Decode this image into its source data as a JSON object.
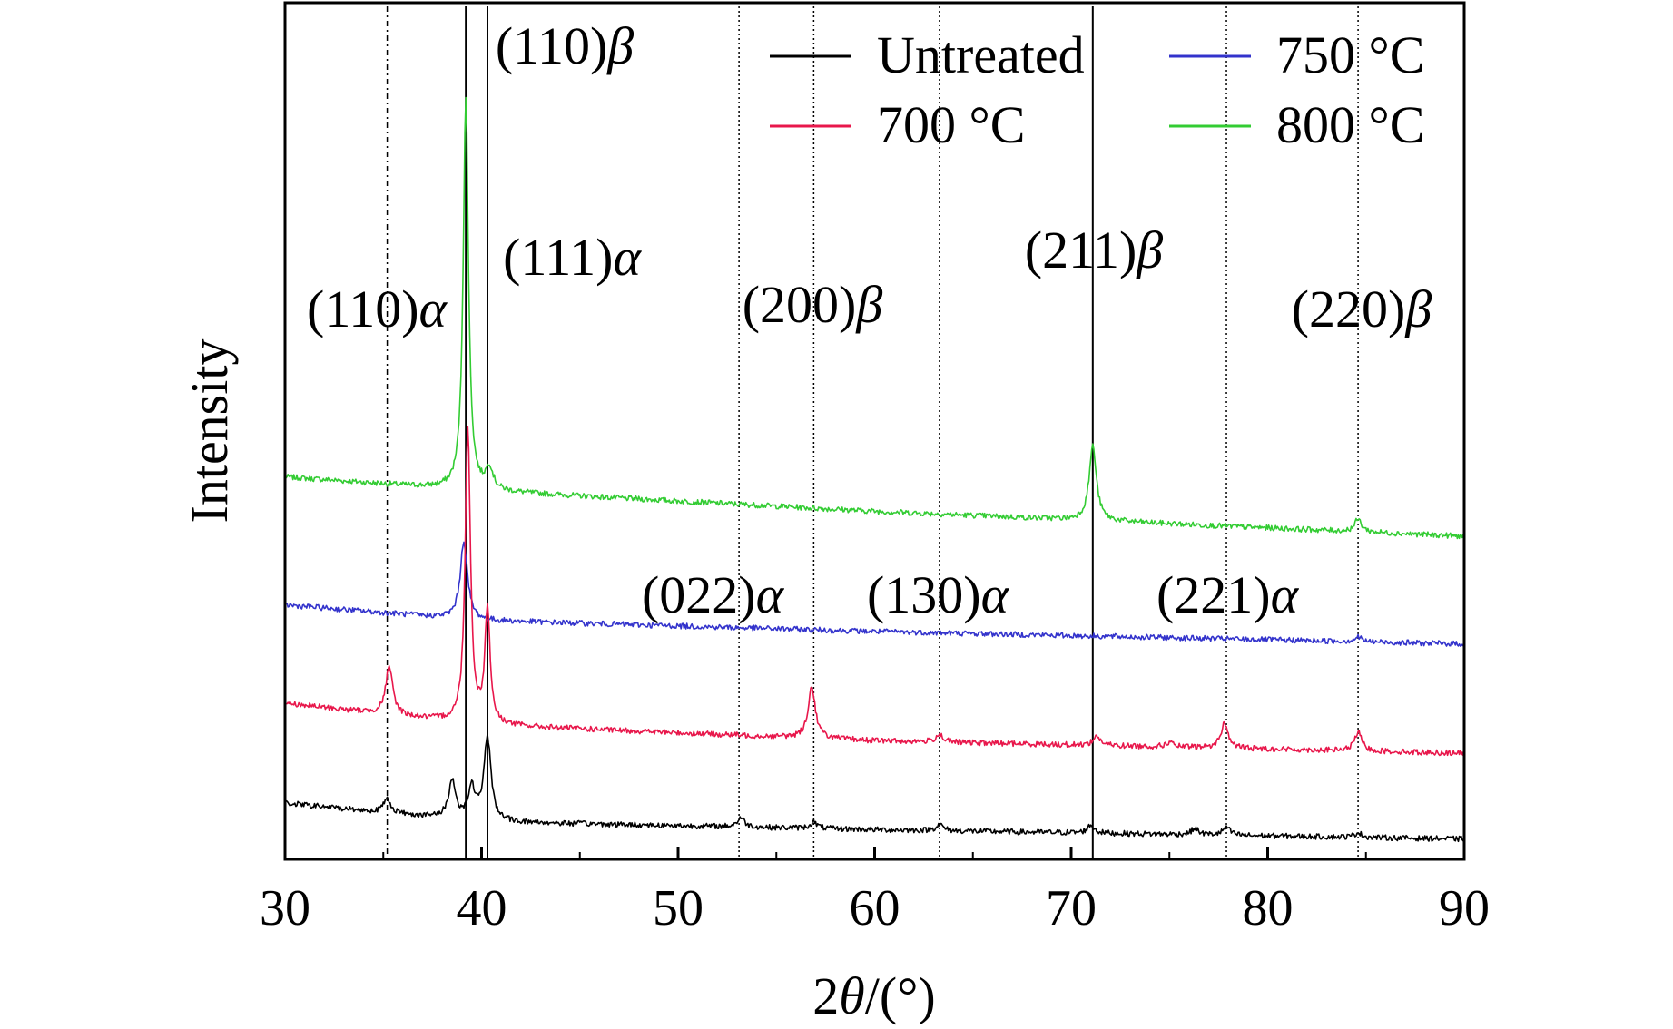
{
  "chart_data": {
    "type": "line",
    "title": "",
    "xlabel_prefix": "2",
    "xlabel_var": "θ",
    "xlabel_unit": "/(°)",
    "ylabel": "Intensity",
    "xlim": [
      30,
      90
    ],
    "x_ticks": [
      30,
      40,
      50,
      60,
      70,
      80,
      90
    ],
    "y_ticks_shown": false,
    "grid": false,
    "legend_position": "top-right",
    "legend_columns": 2,
    "series": [
      {
        "name": "Untreated",
        "color": "#000000",
        "baseline": [
          [
            30,
            0.36
          ],
          [
            40,
            0.24
          ],
          [
            60,
            0.19
          ],
          [
            90,
            0.13
          ]
        ],
        "peaks": [
          [
            35.2,
            0.09
          ],
          [
            38.5,
            0.24
          ],
          [
            39.5,
            0.2
          ],
          [
            40.3,
            0.53
          ],
          [
            53.2,
            0.06
          ],
          [
            56.9,
            0.04
          ],
          [
            63.3,
            0.04
          ],
          [
            71.0,
            0.05
          ],
          [
            76.3,
            0.04
          ],
          [
            77.9,
            0.05
          ],
          [
            84.6,
            0.03
          ]
        ]
      },
      {
        "name": "700 °C",
        "color": "#e8174b",
        "baseline": [
          [
            30,
            1.0
          ],
          [
            40,
            0.86
          ],
          [
            60,
            0.76
          ],
          [
            90,
            0.68
          ]
        ],
        "peaks": [
          [
            35.3,
            0.3
          ],
          [
            39.3,
            1.9
          ],
          [
            40.3,
            0.73
          ],
          [
            56.8,
            0.33
          ],
          [
            63.3,
            0.05
          ],
          [
            71.3,
            0.06
          ],
          [
            75.0,
            0.03
          ],
          [
            77.8,
            0.16
          ],
          [
            84.6,
            0.12
          ]
        ]
      },
      {
        "name": "750 °C",
        "color": "#3333cc",
        "baseline": [
          [
            30,
            1.63
          ],
          [
            40,
            1.53
          ],
          [
            60,
            1.46
          ],
          [
            90,
            1.38
          ]
        ],
        "peaks": [
          [
            39.1,
            0.5
          ],
          [
            84.6,
            0.03
          ]
        ]
      },
      {
        "name": "800 °C",
        "color": "#33cc33",
        "baseline": [
          [
            30,
            2.45
          ],
          [
            40,
            2.36
          ],
          [
            60,
            2.23
          ],
          [
            90,
            2.07
          ]
        ],
        "peaks": [
          [
            39.2,
            2.5
          ],
          [
            40.4,
            0.14
          ],
          [
            71.1,
            0.48
          ],
          [
            84.6,
            0.08
          ]
        ]
      }
    ],
    "reference_lines": [
      {
        "x": 35.2,
        "style": "dash-dot",
        "label": "(110)",
        "phase": "α"
      },
      {
        "x": 39.2,
        "style": "solid",
        "label": "(110)",
        "phase": "β"
      },
      {
        "x": 40.3,
        "style": "solid",
        "label": "(111)",
        "phase": "α"
      },
      {
        "x": 53.1,
        "style": "dotted",
        "label": "(022)",
        "phase": "α"
      },
      {
        "x": 56.9,
        "style": "dotted",
        "label": "(200)",
        "phase": "β"
      },
      {
        "x": 63.3,
        "style": "dotted",
        "label": "(130)",
        "phase": "α"
      },
      {
        "x": 71.1,
        "style": "solid",
        "label": "(211)",
        "phase": "β"
      },
      {
        "x": 77.9,
        "style": "dotted",
        "label": "(221)",
        "phase": "α"
      },
      {
        "x": 84.6,
        "style": "dotted",
        "label": "(220)",
        "phase": "β"
      }
    ]
  }
}
